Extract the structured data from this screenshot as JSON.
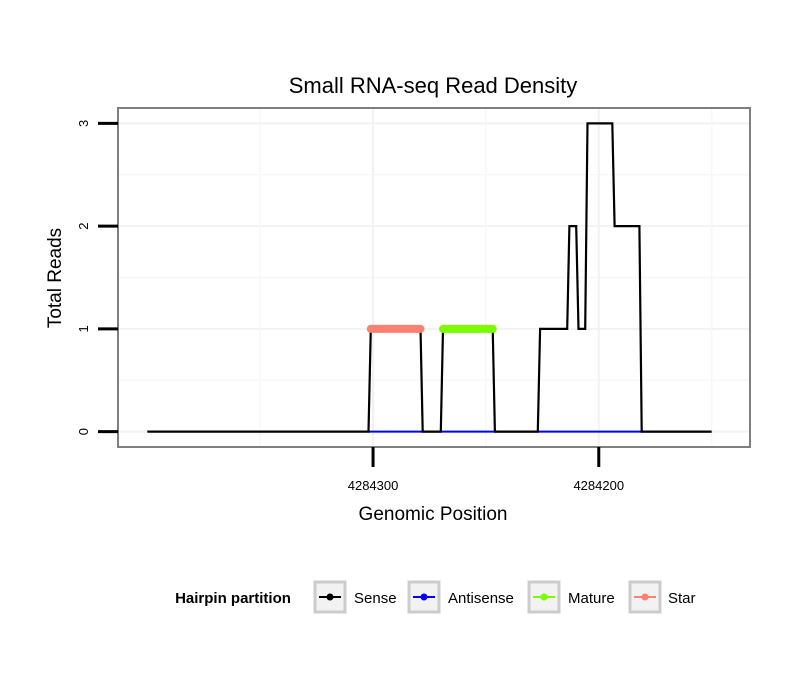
{
  "chart_data": {
    "type": "line",
    "title": "Small RNA-seq Read Density",
    "xlabel": "Genomic Position",
    "ylabel": "Total Reads",
    "x_reversed": true,
    "xlim": [
      4284413,
      4284133
    ],
    "ylim": [
      -0.15,
      3.15
    ],
    "x_ticks": [
      4284300,
      4284200
    ],
    "x_tick_labels": [
      "4284300",
      "4284200"
    ],
    "y_ticks": [
      0,
      1,
      2,
      3
    ],
    "y_tick_labels": [
      "0",
      "1",
      "2",
      "3"
    ],
    "grid": true,
    "legend": {
      "title": "Hairpin partition",
      "position": "bottom",
      "entries": [
        "Sense",
        "Antisense",
        "Mature",
        "Star"
      ]
    },
    "series": [
      {
        "name": "Sense",
        "color": "#000000",
        "x": [
          4284400,
          4284302,
          4284301,
          4284279,
          4284278,
          4284270,
          4284269,
          4284247,
          4284246,
          4284227,
          4284226,
          4284214,
          4284213,
          4284210,
          4284209,
          4284206,
          4284205,
          4284194,
          4284193,
          4284182,
          4284181,
          4284150
        ],
        "y": [
          0,
          0,
          1,
          1,
          0,
          0,
          1,
          1,
          0,
          0,
          1,
          1,
          2,
          2,
          1,
          1,
          3,
          3,
          2,
          2,
          0,
          0
        ]
      },
      {
        "name": "Antisense",
        "color": "#0000ff",
        "x": [
          4284302,
          4284279,
          4284246,
          4284150
        ],
        "y": [
          0,
          0,
          0,
          0
        ]
      },
      {
        "name": "Mature",
        "color": "#7cfc00",
        "x": [
          4284269,
          4284247
        ],
        "y": [
          1,
          1
        ]
      },
      {
        "name": "Star",
        "color": "#fa8072",
        "x": [
          4284301,
          4284279
        ],
        "y": [
          1,
          1
        ]
      }
    ]
  }
}
